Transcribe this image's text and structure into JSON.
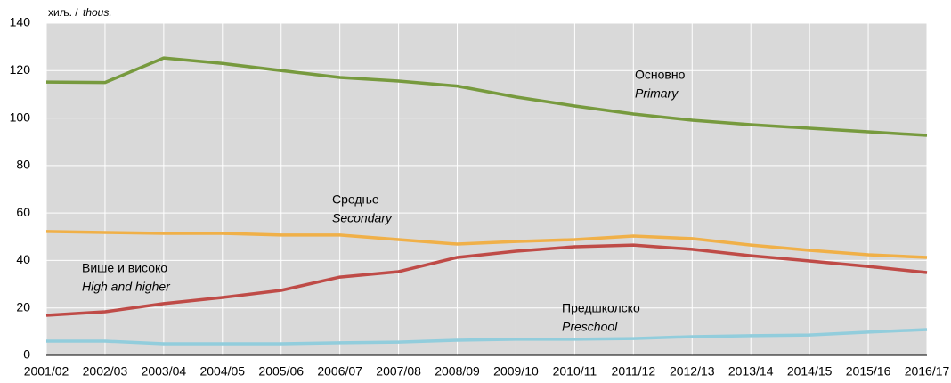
{
  "chart_data": {
    "type": "line",
    "y_unit": "хиљ. /",
    "y_unit_en": "thous.",
    "categories": [
      "2001/02",
      "2002/03",
      "2003/04",
      "2004/05",
      "2005/06",
      "2006/07",
      "2007/08",
      "2008/09",
      "2009/10",
      "2010/11",
      "2011/12",
      "2012/13",
      "2013/14",
      "2014/15",
      "2015/16",
      "2016/17"
    ],
    "ylim": [
      0,
      140
    ],
    "yticks": [
      0,
      20,
      40,
      60,
      80,
      100,
      120,
      140
    ],
    "grid": true,
    "series": [
      {
        "name": "Основно",
        "name_en": "Primary",
        "color": "#779a3e",
        "values": [
          115.2,
          115,
          125.3,
          123,
          120,
          117.1,
          115.6,
          113.5,
          108.9,
          105.1,
          101.7,
          99.1,
          97.2,
          95.7,
          94.2,
          92.7
        ]
      },
      {
        "name": "Средње",
        "name_en": "Secondary",
        "color": "#f0b048",
        "values": [
          52.2,
          51.8,
          51.4,
          51.4,
          50.7,
          50.7,
          48.8,
          46.9,
          48,
          48.8,
          50.3,
          49.2,
          46.5,
          44.3,
          42.4,
          41.3
        ]
      },
      {
        "name": "Више и високо",
        "name_en": "High and higher",
        "color": "#bf4b47",
        "values": [
          16.9,
          18.4,
          21.8,
          24.4,
          27.4,
          33,
          35.3,
          41.3,
          43.9,
          45.8,
          46.5,
          44.7,
          42,
          39.8,
          37.5,
          34.9
        ]
      },
      {
        "name": "Предшколско",
        "name_en": "Preschool",
        "color": "#92cddc",
        "values": [
          6,
          6,
          4.9,
          4.9,
          4.9,
          5.3,
          5.6,
          6.4,
          6.8,
          6.8,
          7.1,
          7.9,
          8.3,
          8.6,
          9.8,
          10.9
        ]
      }
    ]
  }
}
